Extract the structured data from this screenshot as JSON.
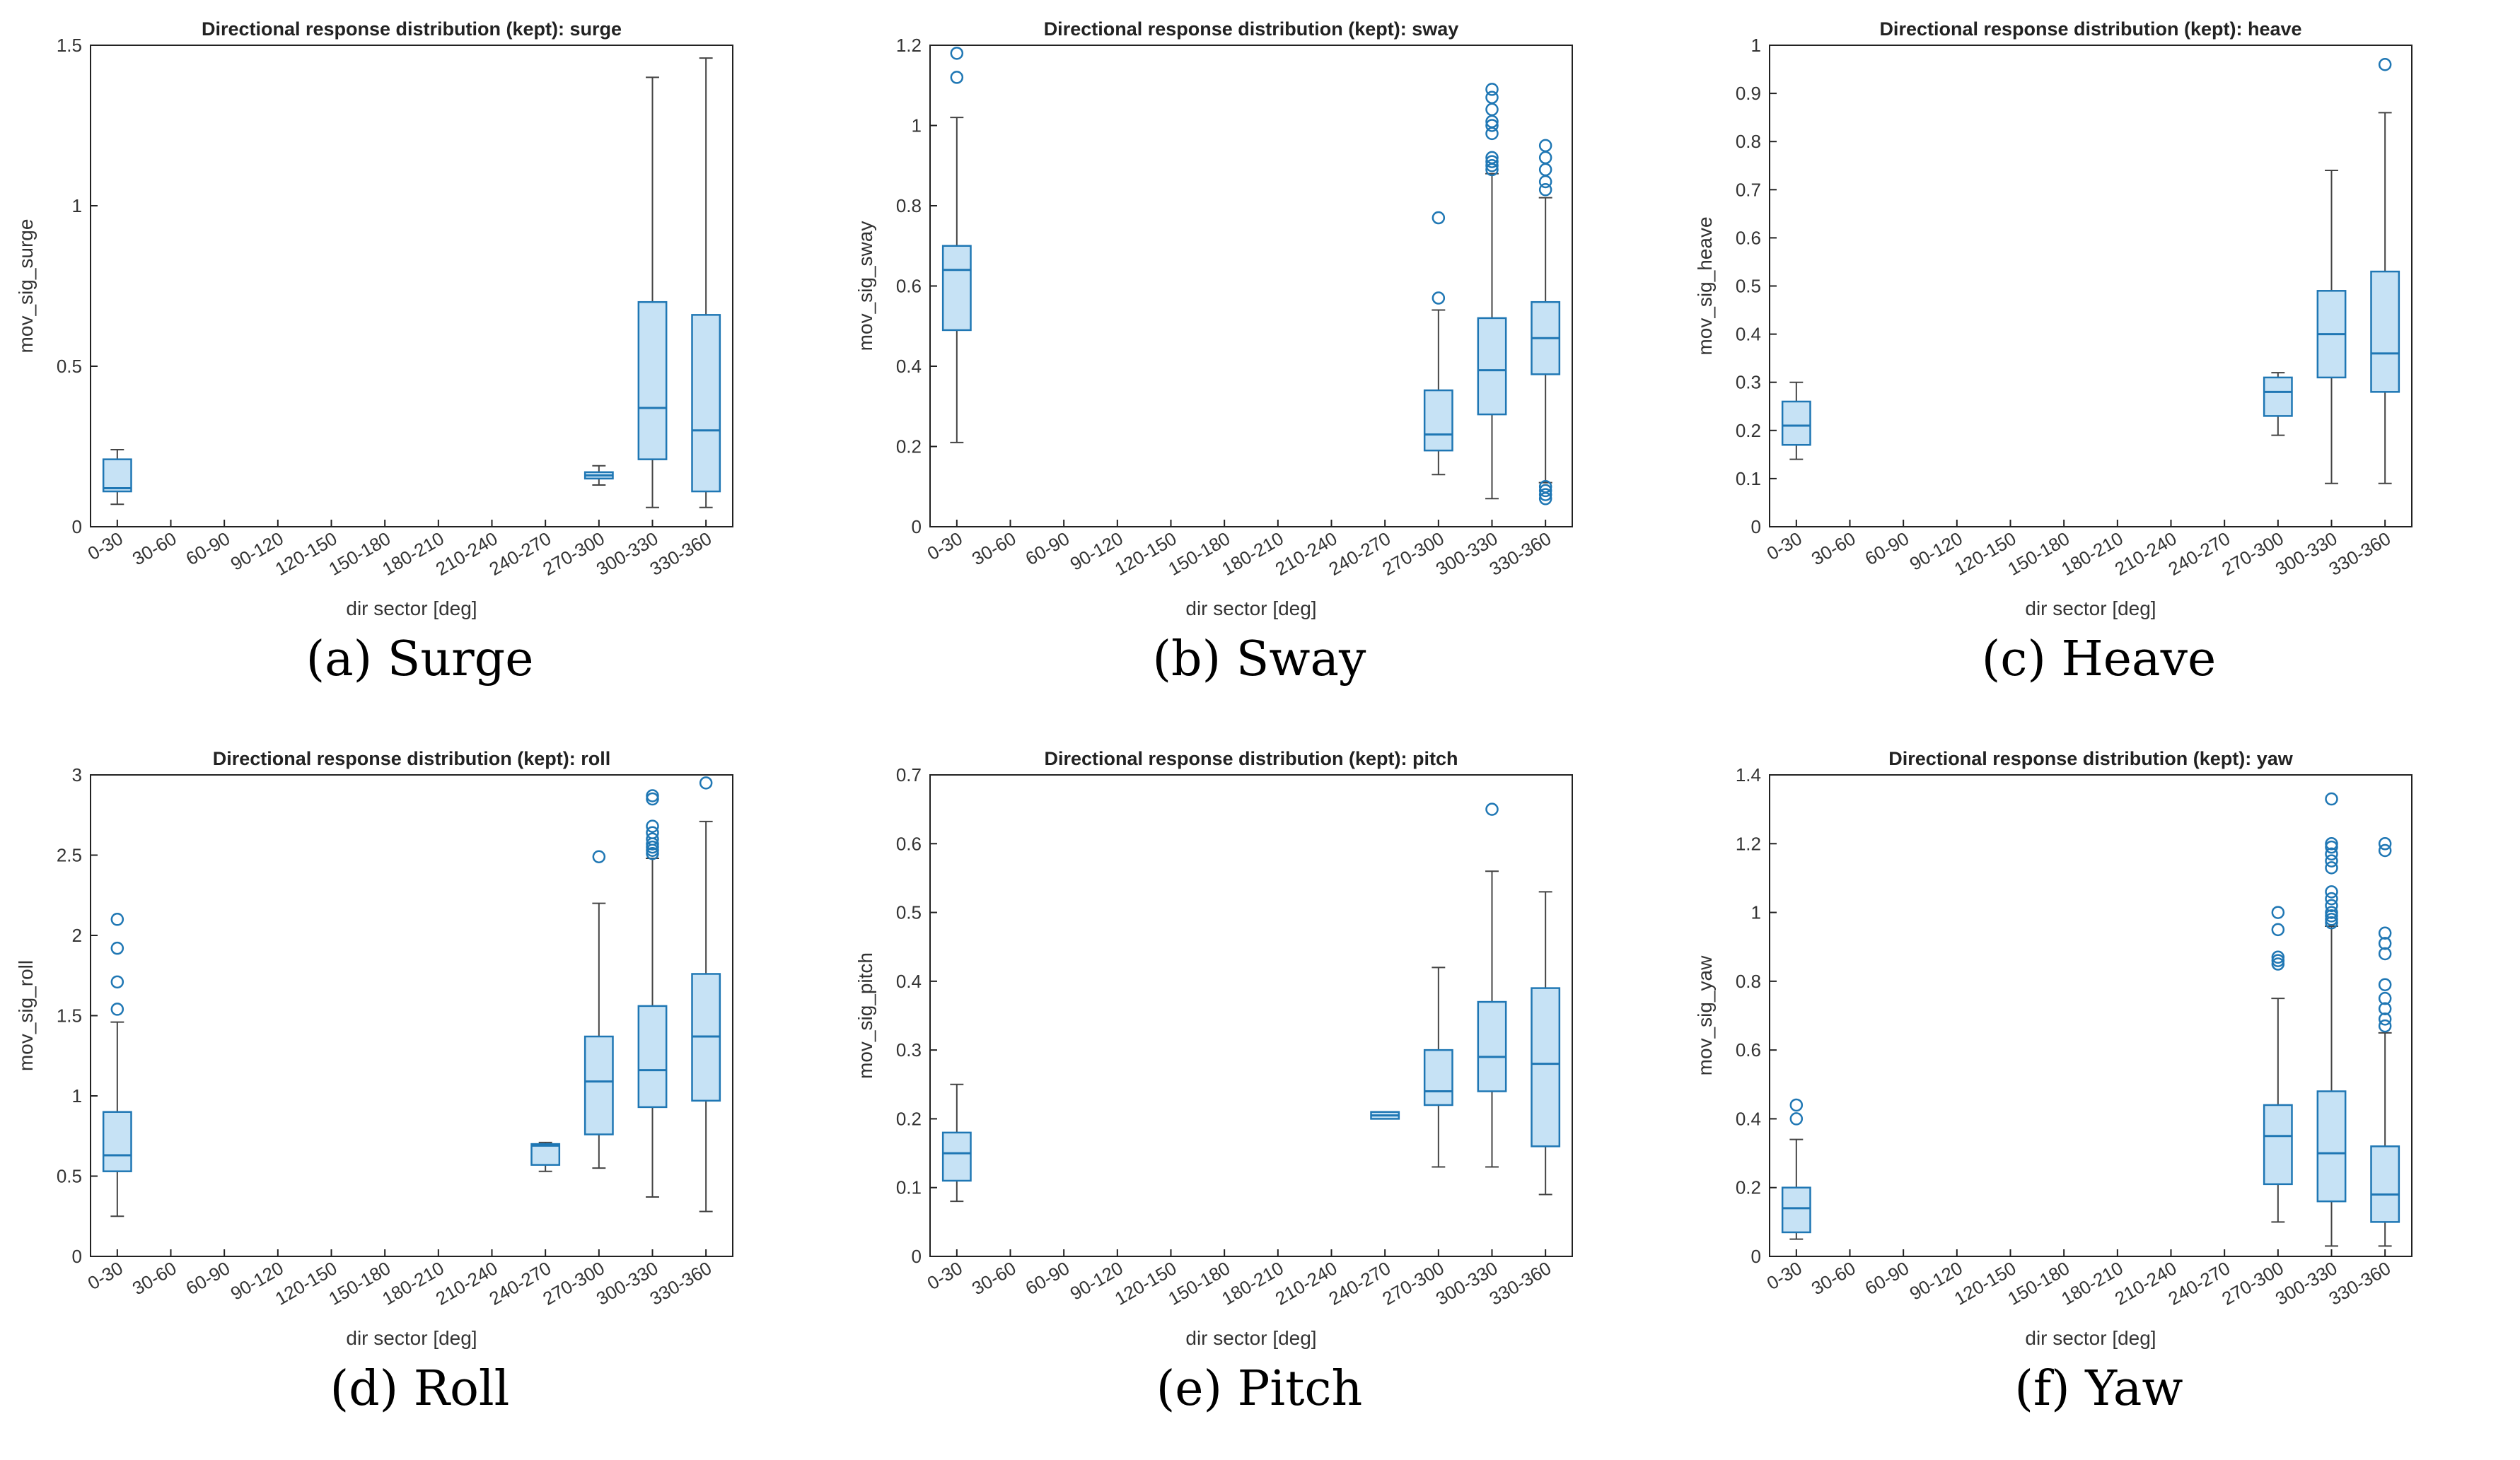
{
  "chart_data": [
    {
      "type": "box",
      "title": "Directional response distribution (kept): surge",
      "caption": "(a) Surge",
      "xlabel": "dir sector [deg]",
      "ylabel": "mov_sig_surge",
      "categories": [
        "0-30",
        "30-60",
        "60-90",
        "90-120",
        "120-150",
        "150-180",
        "180-210",
        "210-240",
        "240-270",
        "270-300",
        "300-330",
        "330-360"
      ],
      "ylim": [
        0,
        1.5
      ],
      "yticks": [
        0,
        0.5,
        1,
        1.5
      ],
      "boxes": [
        {
          "category": "0-30",
          "whisker_low": 0.07,
          "q1": 0.11,
          "median": 0.12,
          "q3": 0.21,
          "whisker_high": 0.24,
          "outliers": []
        },
        {
          "category": "270-300",
          "whisker_low": 0.13,
          "q1": 0.15,
          "median": 0.16,
          "q3": 0.17,
          "whisker_high": 0.19,
          "outliers": []
        },
        {
          "category": "300-330",
          "whisker_low": 0.06,
          "q1": 0.21,
          "median": 0.37,
          "q3": 0.7,
          "whisker_high": 1.4,
          "outliers": []
        },
        {
          "category": "330-360",
          "whisker_low": 0.06,
          "q1": 0.11,
          "median": 0.3,
          "q3": 0.66,
          "whisker_high": 1.46,
          "outliers": []
        }
      ]
    },
    {
      "type": "box",
      "title": "Directional response distribution (kept): sway",
      "caption": "(b) Sway",
      "xlabel": "dir sector [deg]",
      "ylabel": "mov_sig_sway",
      "categories": [
        "0-30",
        "30-60",
        "60-90",
        "90-120",
        "120-150",
        "150-180",
        "180-210",
        "210-240",
        "240-270",
        "270-300",
        "300-330",
        "330-360"
      ],
      "ylim": [
        0,
        1.2
      ],
      "yticks": [
        0,
        0.2,
        0.4,
        0.6,
        0.8,
        1,
        1.2
      ],
      "boxes": [
        {
          "category": "0-30",
          "whisker_low": 0.21,
          "q1": 0.49,
          "median": 0.64,
          "q3": 0.7,
          "whisker_high": 1.02,
          "outliers": [
            1.12,
            1.18
          ]
        },
        {
          "category": "270-300",
          "whisker_low": 0.13,
          "q1": 0.19,
          "median": 0.23,
          "q3": 0.34,
          "whisker_high": 0.54,
          "outliers": [
            0.57,
            0.77
          ]
        },
        {
          "category": "300-330",
          "whisker_low": 0.07,
          "q1": 0.28,
          "median": 0.39,
          "q3": 0.52,
          "whisker_high": 0.88,
          "outliers": [
            0.89,
            0.9,
            0.91,
            0.92,
            0.98,
            1.0,
            1.01,
            1.04,
            1.07,
            1.09
          ]
        },
        {
          "category": "330-360",
          "whisker_low": 0.11,
          "q1": 0.38,
          "median": 0.47,
          "q3": 0.56,
          "whisker_high": 0.82,
          "outliers": [
            0.07,
            0.08,
            0.09,
            0.1,
            0.84,
            0.86,
            0.89,
            0.92,
            0.95
          ]
        }
      ]
    },
    {
      "type": "box",
      "title": "Directional response distribution (kept): heave",
      "caption": "(c) Heave",
      "xlabel": "dir sector [deg]",
      "ylabel": "mov_sig_heave",
      "categories": [
        "0-30",
        "30-60",
        "60-90",
        "90-120",
        "120-150",
        "150-180",
        "180-210",
        "210-240",
        "240-270",
        "270-300",
        "300-330",
        "330-360"
      ],
      "ylim": [
        0,
        1
      ],
      "yticks": [
        0,
        0.1,
        0.2,
        0.3,
        0.4,
        0.5,
        0.6,
        0.7,
        0.8,
        0.9,
        1
      ],
      "boxes": [
        {
          "category": "0-30",
          "whisker_low": 0.14,
          "q1": 0.17,
          "median": 0.21,
          "q3": 0.26,
          "whisker_high": 0.3,
          "outliers": []
        },
        {
          "category": "270-300",
          "whisker_low": 0.19,
          "q1": 0.23,
          "median": 0.28,
          "q3": 0.31,
          "whisker_high": 0.32,
          "outliers": []
        },
        {
          "category": "300-330",
          "whisker_low": 0.09,
          "q1": 0.31,
          "median": 0.4,
          "q3": 0.49,
          "whisker_high": 0.74,
          "outliers": []
        },
        {
          "category": "330-360",
          "whisker_low": 0.09,
          "q1": 0.28,
          "median": 0.36,
          "q3": 0.53,
          "whisker_high": 0.86,
          "outliers": [
            0.96
          ]
        }
      ]
    },
    {
      "type": "box",
      "title": "Directional response distribution (kept): roll",
      "caption": "(d) Roll",
      "xlabel": "dir sector [deg]",
      "ylabel": "mov_sig_roll",
      "categories": [
        "0-30",
        "30-60",
        "60-90",
        "90-120",
        "120-150",
        "150-180",
        "180-210",
        "210-240",
        "240-270",
        "270-300",
        "300-330",
        "330-360"
      ],
      "ylim": [
        0,
        3
      ],
      "yticks": [
        0,
        0.5,
        1,
        1.5,
        2,
        2.5,
        3
      ],
      "boxes": [
        {
          "category": "0-30",
          "whisker_low": 0.25,
          "q1": 0.53,
          "median": 0.63,
          "q3": 0.9,
          "whisker_high": 1.46,
          "outliers": [
            1.54,
            1.71,
            1.92,
            2.1
          ]
        },
        {
          "category": "240-270",
          "whisker_low": 0.53,
          "q1": 0.57,
          "median": 0.69,
          "q3": 0.7,
          "whisker_high": 0.71,
          "outliers": []
        },
        {
          "category": "270-300",
          "whisker_low": 0.55,
          "q1": 0.76,
          "median": 1.09,
          "q3": 1.37,
          "whisker_high": 2.2,
          "outliers": [
            2.49
          ]
        },
        {
          "category": "300-330",
          "whisker_low": 0.37,
          "q1": 0.93,
          "median": 1.16,
          "q3": 1.56,
          "whisker_high": 2.48,
          "outliers": [
            2.51,
            2.53,
            2.55,
            2.57,
            2.6,
            2.64,
            2.68,
            2.85,
            2.87
          ]
        },
        {
          "category": "330-360",
          "whisker_low": 0.28,
          "q1": 0.97,
          "median": 1.37,
          "q3": 1.76,
          "whisker_high": 2.71,
          "outliers": [
            2.95
          ]
        }
      ]
    },
    {
      "type": "box",
      "title": "Directional response distribution (kept): pitch",
      "caption": "(e) Pitch",
      "xlabel": "dir sector [deg]",
      "ylabel": "mov_sig_pitch",
      "categories": [
        "0-30",
        "30-60",
        "60-90",
        "90-120",
        "120-150",
        "150-180",
        "180-210",
        "210-240",
        "240-270",
        "270-300",
        "300-330",
        "330-360"
      ],
      "ylim": [
        0,
        0.7
      ],
      "yticks": [
        0,
        0.1,
        0.2,
        0.3,
        0.4,
        0.5,
        0.6,
        0.7
      ],
      "boxes": [
        {
          "category": "0-30",
          "whisker_low": 0.08,
          "q1": 0.11,
          "median": 0.15,
          "q3": 0.18,
          "whisker_high": 0.25,
          "outliers": []
        },
        {
          "category": "240-270",
          "whisker_low": 0.2,
          "q1": 0.2,
          "median": 0.205,
          "q3": 0.21,
          "whisker_high": 0.21,
          "outliers": []
        },
        {
          "category": "270-300",
          "whisker_low": 0.13,
          "q1": 0.22,
          "median": 0.24,
          "q3": 0.3,
          "whisker_high": 0.42,
          "outliers": []
        },
        {
          "category": "300-330",
          "whisker_low": 0.13,
          "q1": 0.24,
          "median": 0.29,
          "q3": 0.37,
          "whisker_high": 0.56,
          "outliers": [
            0.65
          ]
        },
        {
          "category": "330-360",
          "whisker_low": 0.09,
          "q1": 0.16,
          "median": 0.28,
          "q3": 0.39,
          "whisker_high": 0.53,
          "outliers": []
        }
      ]
    },
    {
      "type": "box",
      "title": "Directional response distribution (kept): yaw",
      "caption": "(f) Yaw",
      "xlabel": "dir sector [deg]",
      "ylabel": "mov_sig_yaw",
      "categories": [
        "0-30",
        "30-60",
        "60-90",
        "90-120",
        "120-150",
        "150-180",
        "180-210",
        "210-240",
        "240-270",
        "270-300",
        "300-330",
        "330-360"
      ],
      "ylim": [
        0,
        1.4
      ],
      "yticks": [
        0,
        0.2,
        0.4,
        0.6,
        0.8,
        1,
        1.2,
        1.4
      ],
      "boxes": [
        {
          "category": "0-30",
          "whisker_low": 0.05,
          "q1": 0.07,
          "median": 0.14,
          "q3": 0.2,
          "whisker_high": 0.34,
          "outliers": [
            0.4,
            0.44
          ]
        },
        {
          "category": "270-300",
          "whisker_low": 0.1,
          "q1": 0.21,
          "median": 0.35,
          "q3": 0.44,
          "whisker_high": 0.75,
          "outliers": [
            0.85,
            0.86,
            0.87,
            0.95,
            1.0
          ]
        },
        {
          "category": "300-330",
          "whisker_low": 0.03,
          "q1": 0.16,
          "median": 0.3,
          "q3": 0.48,
          "whisker_high": 0.96,
          "outliers": [
            0.97,
            0.98,
            0.99,
            1.0,
            1.02,
            1.04,
            1.06,
            1.13,
            1.15,
            1.17,
            1.19,
            1.2,
            1.33
          ]
        },
        {
          "category": "330-360",
          "whisker_low": 0.03,
          "q1": 0.1,
          "median": 0.18,
          "q3": 0.32,
          "whisker_high": 0.65,
          "outliers": [
            0.67,
            0.69,
            0.72,
            0.75,
            0.79,
            0.88,
            0.91,
            0.94,
            1.18,
            1.2
          ]
        }
      ]
    }
  ],
  "style": {
    "box_stroke": "#1f77b4",
    "box_fill": "#c6e2f5",
    "whisker_color": "#444444",
    "axis_color": "#222222"
  }
}
